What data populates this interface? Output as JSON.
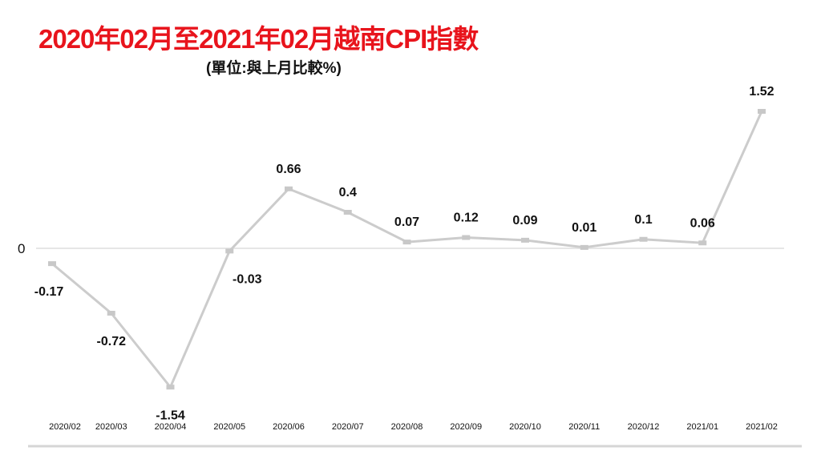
{
  "chart_data": {
    "type": "line",
    "title": "2020年02月至2021年02月越南CPI指數",
    "subtitle": "(單位:與上月比較%)",
    "categories": [
      "2020/02",
      "2020/03",
      "2020/04",
      "2020/05",
      "2020/06",
      "2020/07",
      "2020/08",
      "2020/09",
      "2020/10",
      "2020/11",
      "2020/12",
      "2021/01",
      "2021/02"
    ],
    "values": [
      -0.17,
      -0.72,
      -1.54,
      -0.03,
      0.66,
      0.4,
      0.07,
      0.12,
      0.09,
      0.01,
      0.1,
      0.06,
      1.52
    ],
    "data_labels": [
      "-0.17",
      "-0.72",
      "-1.54",
      "-0.03",
      "0.66",
      "0.4",
      "0.07",
      "0.12",
      "0.09",
      "0.01",
      "0.1",
      "0.06",
      "1.52"
    ],
    "zero_label": "0",
    "ylim": [
      -1.6,
      1.6
    ],
    "grid": false,
    "line_color": "#cccccc",
    "title_color": "#e8141c"
  }
}
